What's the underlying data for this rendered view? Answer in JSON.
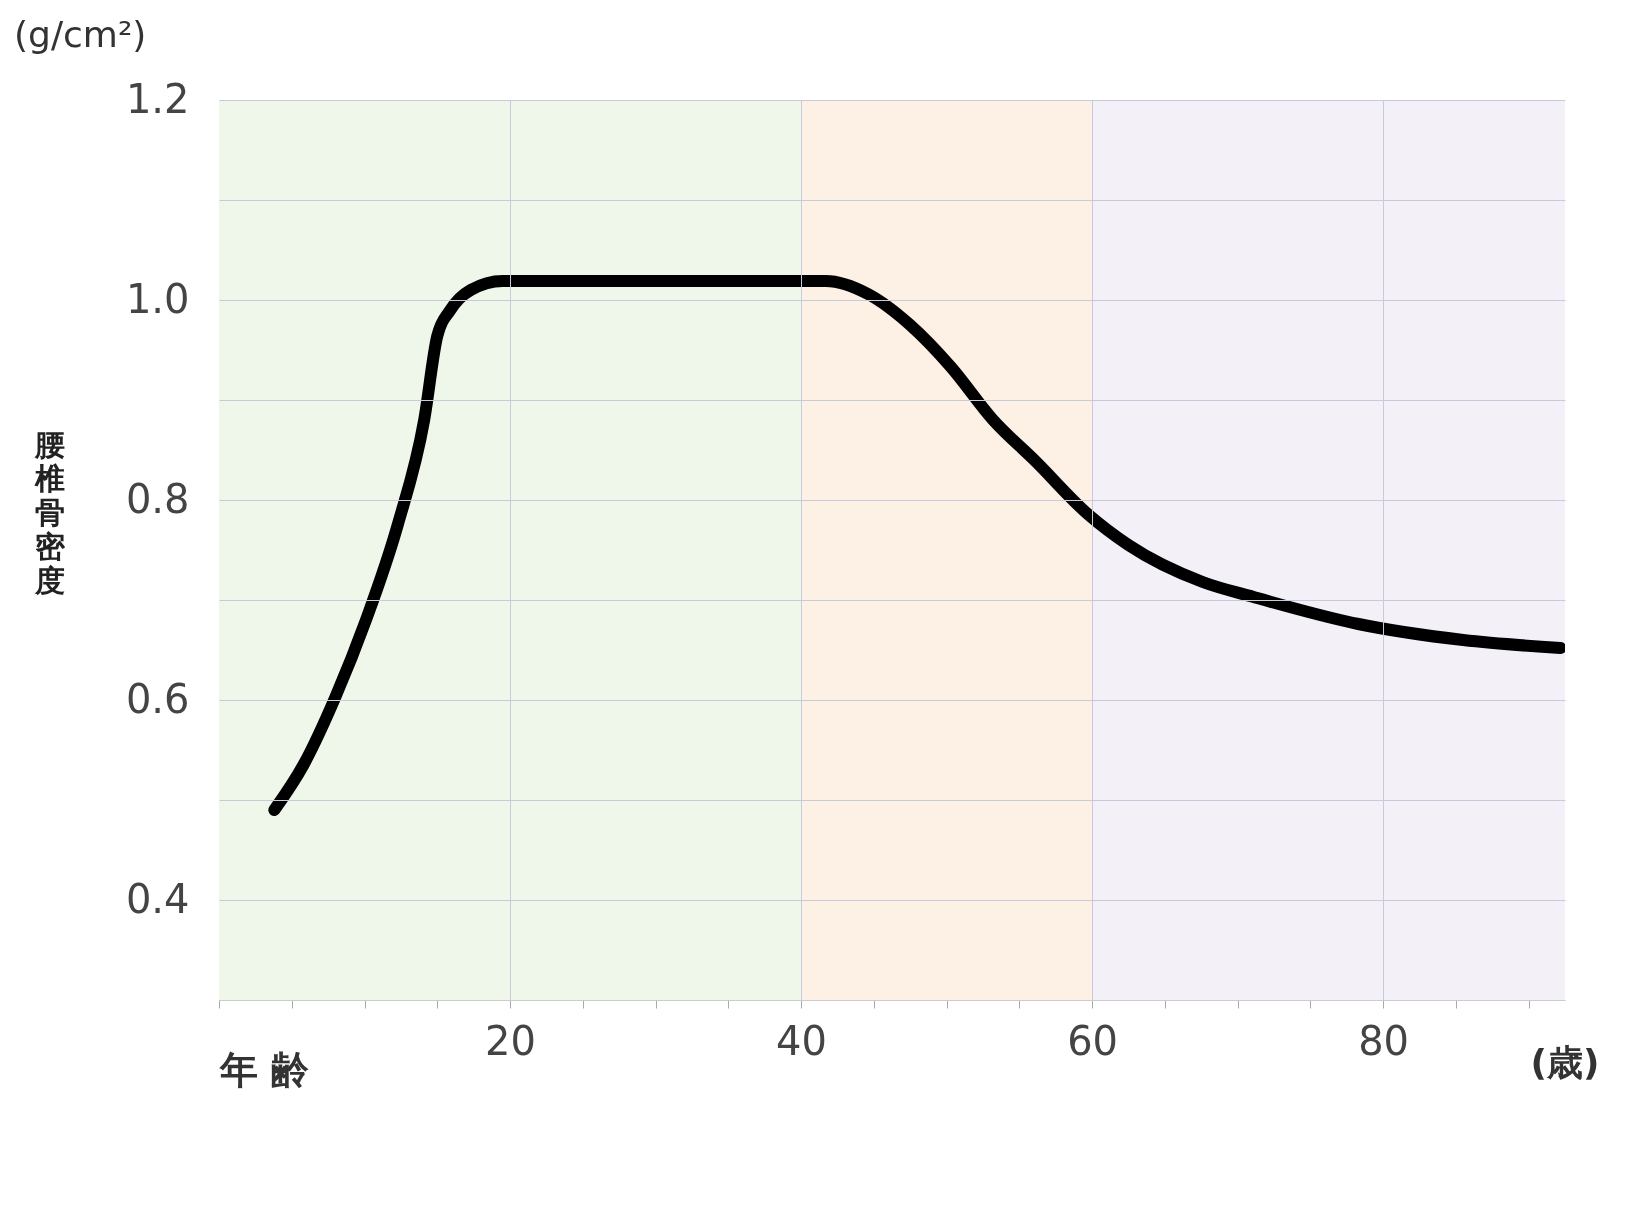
{
  "chart_data": {
    "type": "line",
    "ylabel": "腰椎骨密度",
    "annotations": [
      "(g/cm²)",
      "(歳)"
    ],
    "xlabel": "年 齢",
    "series": [
      {
        "color": "#000000",
        "x": [
          3.8,
          5.8,
          8.0,
          10.1,
          12.3,
          14.1,
          15.0,
          15.9,
          17.3,
          19.5,
          30,
          41.7,
          44.6,
          47.5,
          50.3,
          53.2,
          56.1,
          59.7,
          62.5,
          67.6,
          71.1,
          78.3,
          85.5,
          92.2
        ],
        "values": [
          0.49,
          0.535,
          0.603,
          0.68,
          0.776,
          0.88,
          0.964,
          0.99,
          1.01,
          1.019,
          1.019,
          1.019,
          1.006,
          0.975,
          0.933,
          0.88,
          0.839,
          0.786,
          0.755,
          0.718,
          0.703,
          0.676,
          0.66,
          0.652
        ]
      }
    ],
    "xlim": [
      0,
      92.5
    ],
    "xticks": [
      {
        "value": 0,
        "label": null
      },
      {
        "value": 5,
        "label": null
      },
      {
        "value": 10,
        "label": null
      },
      {
        "value": 15,
        "label": null
      },
      20,
      {
        "value": 25,
        "label": null
      },
      {
        "value": 30,
        "label": null
      },
      {
        "value": 35,
        "label": null
      },
      40,
      {
        "value": 45,
        "label": null
      },
      {
        "value": 50,
        "label": null
      },
      {
        "value": 55,
        "label": null
      },
      60,
      {
        "value": 65,
        "label": null
      },
      {
        "value": 70,
        "label": null
      },
      {
        "value": 75,
        "label": null
      },
      80,
      {
        "value": 85,
        "label": null
      },
      {
        "value": 90,
        "label": null
      }
    ],
    "ylim": [
      0.3,
      1.2
    ],
    "yticks": [
      {
        "value": 0.3,
        "label": null
      },
      0.4,
      {
        "value": 0.5,
        "label": null
      },
      0.6,
      {
        "value": 0.7,
        "label": null
      },
      0.8,
      {
        "value": 0.9,
        "label": null
      },
      {
        "value": 1,
        "label": "1.0"
      },
      {
        "value": 1.1,
        "label": null
      },
      1.2
    ],
    "bands": [
      {
        "axis": "x",
        "from": 0,
        "to": 40,
        "color": "#eef7ea"
      },
      {
        "axis": "x",
        "from": 40,
        "to": 60,
        "color": "#fdf0e4"
      },
      {
        "axis": "x",
        "from": 60,
        "to": 92.5,
        "color": "#f3f0f8"
      }
    ],
    "grid": true,
    "line_style": "solid",
    "marker": "none"
  }
}
